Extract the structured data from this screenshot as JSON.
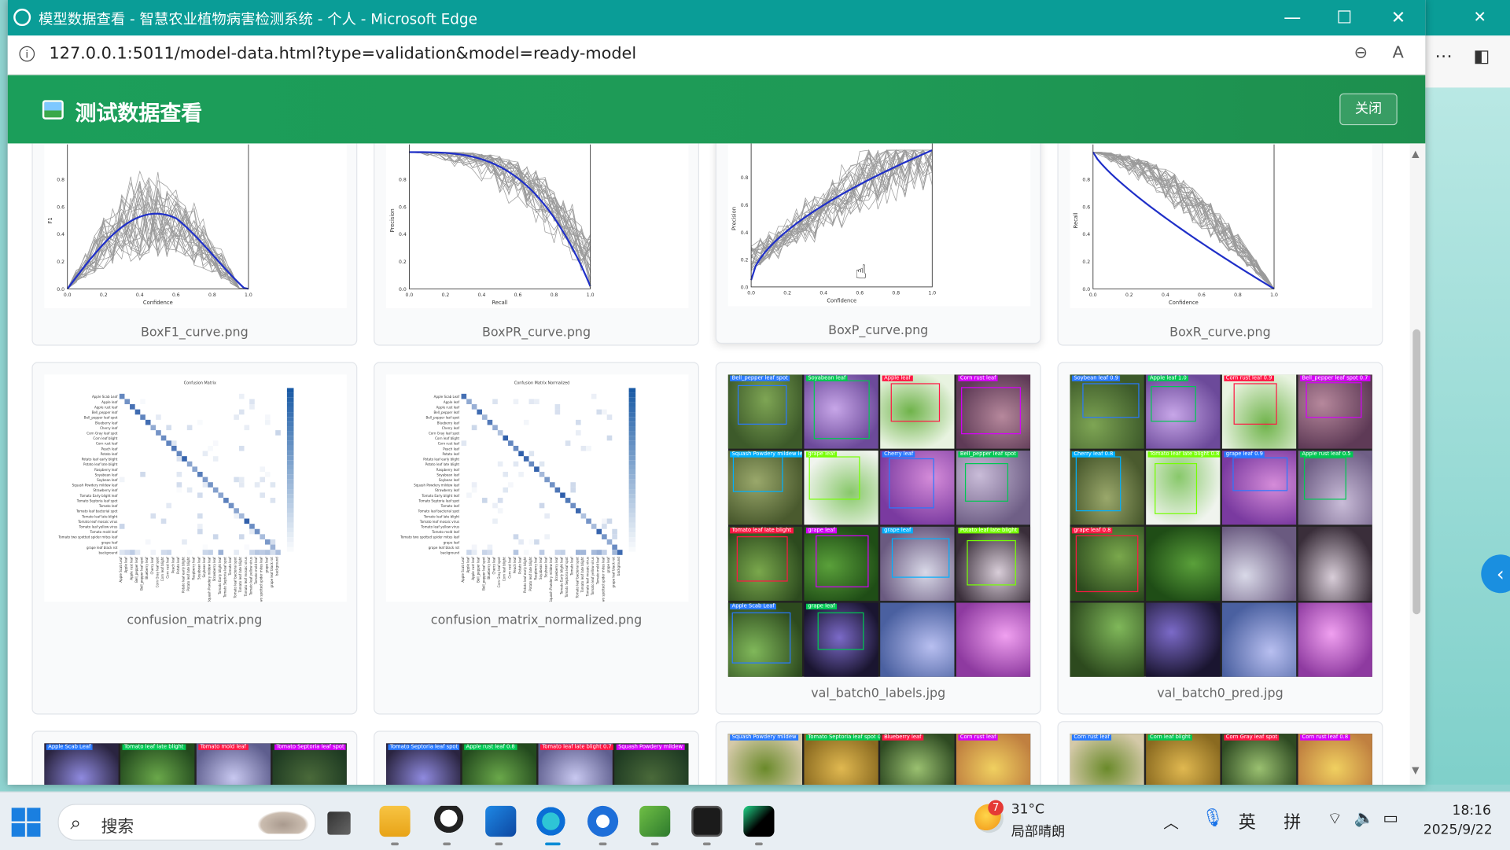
{
  "window": {
    "title": "模型数据查看 - 智慧农业植物病害检测系统 - 个人 - Microsoft Edge",
    "url": "127.0.0.1:5011/model-data.html?type=validation&model=ready-model"
  },
  "header": {
    "title": "测试数据查看",
    "close_label": "关闭"
  },
  "cards": [
    {
      "caption": "BoxF1_curve.png",
      "kind": "curve",
      "ylab": "F1",
      "xlab": "Confidence",
      "shape": "f1"
    },
    {
      "caption": "BoxPR_curve.png",
      "kind": "curve",
      "ylab": "Precision",
      "xlab": "Recall",
      "shape": "pr"
    },
    {
      "caption": "BoxP_curve.png",
      "kind": "curve",
      "ylab": "Precision",
      "xlab": "Confidence",
      "shape": "p"
    },
    {
      "caption": "BoxR_curve.png",
      "kind": "curve",
      "ylab": "Recall",
      "xlab": "Confidence",
      "shape": "r"
    },
    {
      "caption": "confusion_matrix.png",
      "kind": "matrix",
      "plot_title": "Confusion Matrix"
    },
    {
      "caption": "confusion_matrix_normalized.png",
      "kind": "matrix",
      "plot_title": "Confusion Matrix Normalized"
    },
    {
      "caption": "val_batch0_labels.jpg",
      "kind": "batch"
    },
    {
      "caption": "val_batch0_pred.jpg",
      "kind": "batch"
    }
  ],
  "matrix_labels": [
    "Apple Scab Leaf",
    "Apple leaf",
    "Apple rust leaf",
    "Bell_pepper leaf",
    "Bell_pepper leaf spot",
    "Blueberry leaf",
    "Cherry leaf",
    "Corn Gray leaf spot",
    "Corn leaf blight",
    "Corn rust leaf",
    "Peach leaf",
    "Potato leaf",
    "Potato leaf early blight",
    "Potato leaf late blight",
    "Raspberry leaf",
    "Soyabean leaf",
    "Soybean leaf",
    "Squash Powdery mildew leaf",
    "Strawberry leaf",
    "Tomato Early blight leaf",
    "Tomato Septoria leaf spot",
    "Tomato leaf",
    "Tomato leaf bacterial spot",
    "Tomato leaf late blight",
    "Tomato leaf mosaic virus",
    "Tomato leaf yellow virus",
    "Tomato mold leaf",
    "Tomato two spotted spider mites leaf",
    "grape leaf",
    "grape leaf black rot",
    "background"
  ],
  "curve_ticks": [
    "0.0",
    "0.2",
    "0.4",
    "0.6",
    "0.8",
    "1.0"
  ],
  "batch_tags": [
    "Bell_pepper leaf spot",
    "Soyabean leaf",
    "Apple leaf",
    "Corn rust leaf",
    "Squash Powdery mildew leaf",
    "grape leaf",
    "Cherry leaf",
    "Bell_pepper leaf spot",
    "Tomato leaf late blight",
    "grape leaf",
    "grape leaf",
    "Potato leaf late blight",
    "Apple Scab Leaf",
    "grape leaf"
  ],
  "pred_tags": [
    "Soybean leaf 0.9",
    "Apple leaf 1.0",
    "Corn rust leaf 0.9",
    "Bell_pepper leaf spot 0.7",
    "Cherry leaf 0.8",
    "Tomato leaf late blight 0.8",
    "grape leaf 0.9",
    "Apple rust leaf 0.5",
    "grape leaf 0.8"
  ],
  "row3_tags": [
    "Apple Scab Leaf",
    "Tomato leaf late blight",
    "Tomato mold leaf",
    "Tomato Septoria leaf spot",
    "Apple rust leaf 0.8",
    "Tomato leaf late blight 0.7",
    "Squash Powdery mildew",
    "Tomato Septoria leaf spot 0.3",
    "Blueberry leaf",
    "Corn rust leaf",
    "Corn leaf blight",
    "Corn Gray leaf spot",
    "Corn rust leaf 0.8",
    "Corn Gray leaf spot 0.4"
  ],
  "taskbar": {
    "search_placeholder": "搜索",
    "weather_temp": "31°C",
    "weather_desc": "局部晴朗",
    "weather_badge": "7",
    "ime_lang": "英",
    "ime_mode": "拼",
    "time": "18:16",
    "date": "2025/9/22"
  },
  "colors": {
    "titlebar": "#0a9d97",
    "header_green": "#1b9e5a",
    "curve_blue": "#1f2fc8"
  }
}
